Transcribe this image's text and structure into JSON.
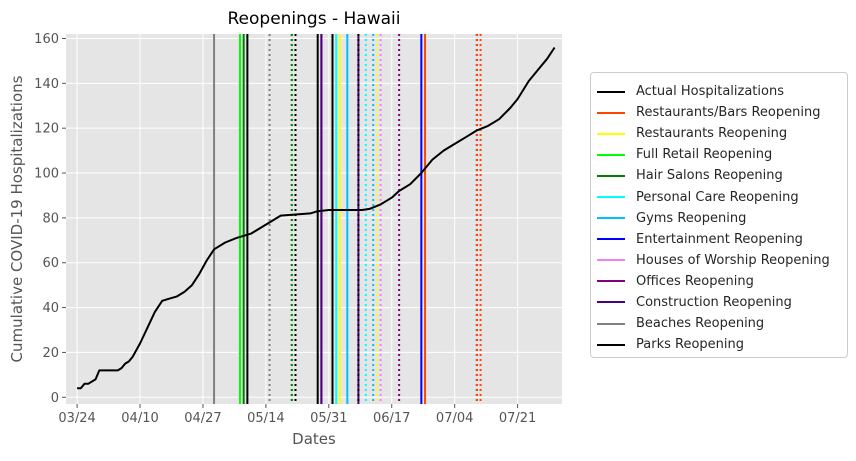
{
  "chart_data": {
    "type": "line",
    "title": "Reopenings - Hawaii",
    "xlabel": "Dates",
    "ylabel": "Cumulative COVID-19 Hospitalizations",
    "ylim": [
      -3,
      162
    ],
    "yticks": [
      0,
      20,
      40,
      60,
      80,
      100,
      120,
      140,
      160
    ],
    "xlim": [
      "2020-03-21",
      "2020-08-02"
    ],
    "xticks": [
      "2020-03-24",
      "2020-04-10",
      "2020-04-27",
      "2020-05-14",
      "2020-05-31",
      "2020-06-17",
      "2020-07-04",
      "2020-07-21"
    ],
    "xtick_labels": [
      "03/24",
      "04/10",
      "04/27",
      "05/14",
      "05/31",
      "06/17",
      "07/04",
      "07/21"
    ],
    "grid": true,
    "legend_position": "right, outside",
    "series": [
      {
        "name": "Actual Hospitalizations",
        "color": "#000000",
        "points": [
          [
            "2020-03-24",
            4
          ],
          [
            "2020-03-25",
            4
          ],
          [
            "2020-03-26",
            6
          ],
          [
            "2020-03-27",
            6
          ],
          [
            "2020-03-29",
            8
          ],
          [
            "2020-03-30",
            12
          ],
          [
            "2020-04-01",
            12
          ],
          [
            "2020-04-04",
            12
          ],
          [
            "2020-04-05",
            13
          ],
          [
            "2020-04-06",
            15
          ],
          [
            "2020-04-07",
            16
          ],
          [
            "2020-04-08",
            18
          ],
          [
            "2020-04-10",
            24
          ],
          [
            "2020-04-12",
            31
          ],
          [
            "2020-04-14",
            38
          ],
          [
            "2020-04-16",
            43
          ],
          [
            "2020-04-18",
            44
          ],
          [
            "2020-04-20",
            45
          ],
          [
            "2020-04-22",
            47
          ],
          [
            "2020-04-24",
            50
          ],
          [
            "2020-04-26",
            55
          ],
          [
            "2020-04-28",
            61
          ],
          [
            "2020-04-30",
            66
          ],
          [
            "2020-05-03",
            69
          ],
          [
            "2020-05-06",
            71
          ],
          [
            "2020-05-08",
            72
          ],
          [
            "2020-05-10",
            73
          ],
          [
            "2020-05-12",
            75
          ],
          [
            "2020-05-14",
            77
          ],
          [
            "2020-05-16",
            79
          ],
          [
            "2020-05-18",
            81
          ],
          [
            "2020-05-22",
            81.5
          ],
          [
            "2020-05-26",
            82
          ],
          [
            "2020-05-28",
            83
          ],
          [
            "2020-05-31",
            83.5
          ],
          [
            "2020-06-04",
            83.5
          ],
          [
            "2020-06-09",
            83.5
          ],
          [
            "2020-06-11",
            84
          ],
          [
            "2020-06-14",
            86
          ],
          [
            "2020-06-17",
            89
          ],
          [
            "2020-06-19",
            92
          ],
          [
            "2020-06-22",
            95
          ],
          [
            "2020-06-25",
            100
          ],
          [
            "2020-06-28",
            106
          ],
          [
            "2020-07-01",
            110
          ],
          [
            "2020-07-04",
            113
          ],
          [
            "2020-07-07",
            116
          ],
          [
            "2020-07-10",
            119
          ],
          [
            "2020-07-13",
            121
          ],
          [
            "2020-07-16",
            124
          ],
          [
            "2020-07-19",
            129
          ],
          [
            "2020-07-21",
            133
          ],
          [
            "2020-07-24",
            141
          ],
          [
            "2020-07-27",
            147
          ],
          [
            "2020-07-29",
            151
          ],
          [
            "2020-07-31",
            156
          ]
        ]
      }
    ],
    "reopenings": [
      {
        "name": "Restaurants/Bars Reopening",
        "color": "#ff4500",
        "solid": null,
        "dotted": "2020-07-11"
      },
      {
        "name": "Restaurants Reopening",
        "color": "#ffff00",
        "solid": "2020-06-03",
        "dotted": "2020-06-13"
      },
      {
        "name": "Full Retail Reopening",
        "color": "#00ff00",
        "solid": "2020-05-07",
        "dotted": "2020-05-21"
      },
      {
        "name": "Hair Salons Reopening",
        "color": "#008000",
        "solid": "2020-05-08",
        "dotted": null
      },
      {
        "name": "Personal Care Reopening",
        "color": "#00ffff",
        "solid": "2020-06-02",
        "dotted": "2020-06-10"
      },
      {
        "name": "Gyms Reopening",
        "color": "#00bfff",
        "solid": "2020-06-05",
        "dotted": "2020-06-12"
      },
      {
        "name": "Entertainment Reopening",
        "color": "#0000ff",
        "solid": "2020-06-25",
        "dotted": "2020-07-10"
      },
      {
        "name": "Houses of Worship Reopening",
        "color": "#ee82ee",
        "solid": null,
        "dotted": "2020-06-14"
      },
      {
        "name": "Offices Reopening",
        "color": "#800080",
        "solid": "2020-05-29",
        "dotted": "2020-06-19"
      },
      {
        "name": "Construction Reopening",
        "color": "#4b0082",
        "solid": "2020-06-08",
        "dotted": null
      },
      {
        "name": "Beaches Reopening",
        "color": "#808080",
        "solid": "2020-04-30",
        "dotted": "2020-05-15"
      },
      {
        "name": "Parks Reopening",
        "color": "#000000",
        "solid": "2020-05-09",
        "dotted": "2020-05-22"
      }
    ],
    "extra_markers": [
      {
        "color": "#008000",
        "style": "dotted",
        "date": "2020-05-21"
      },
      {
        "color": "#000000",
        "style": "solid",
        "date": "2020-05-28"
      },
      {
        "color": "#000000",
        "style": "solid",
        "date": "2020-06-01"
      },
      {
        "color": "#000000",
        "style": "dotted",
        "date": "2020-06-08"
      },
      {
        "color": "#ff4500",
        "style": "solid",
        "date": "2020-06-26"
      },
      {
        "color": "#4b0082",
        "style": "solid",
        "date": "2020-05-29"
      },
      {
        "color": "#ff4500",
        "style": "dotted",
        "date": "2020-07-10"
      }
    ]
  }
}
